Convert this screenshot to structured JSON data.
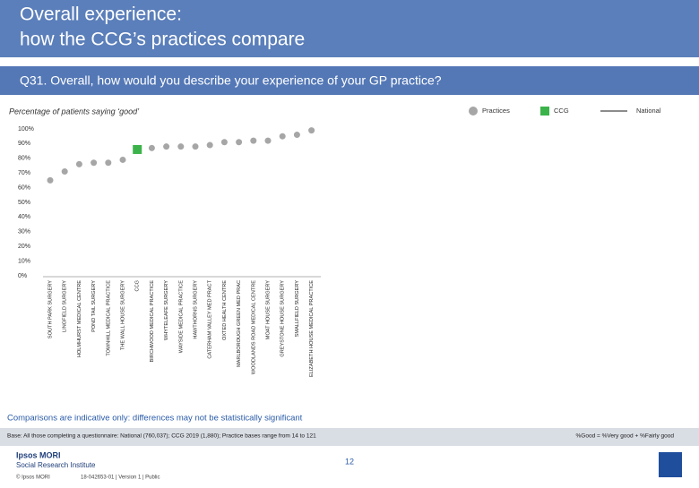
{
  "header": {
    "title": [
      "Overall experience:",
      "how the CCG’s practices compare"
    ]
  },
  "question": "Q31. Overall, how would you describe your experience of your GP practice?",
  "chart_data": {
    "type": "scatter",
    "subtitle": "Percentage of patients saying ‘good’",
    "categories": [
      "SOUTH PARK SURGERY",
      "LINGFIELD SURGERY",
      "HOLMHURST MEDICAL CENTRE",
      "POND TAIL SURGERY",
      "TOWNHILL MEDICAL PRACTICE",
      "THE WALL HOUSE SURGERY",
      "CCG",
      "BIRCHWOOD MEDICAL PRACTICE",
      "WHYTELEAFE SURGERY",
      "WAYSIDE MEDICAL PRACTICE",
      "HAWTHORNS SURGERY",
      "CATERHAM VALLEY MED PRACT",
      "OXTED HEALTH CENTRE",
      "MARLBOROUGH GREEN MED PRAC",
      "WOODLANDS ROAD MEDICAL CENTRE",
      "MOAT HOUSE SURGERY",
      "GREYSTONE HOUSE SURGERY",
      "SMALLFIELD SURGERY",
      "ELIZABETH HOUSE MEDICAL PRACTICE"
    ],
    "values": [
      65,
      71,
      76,
      77,
      77,
      79,
      86,
      87,
      88,
      88,
      88,
      89,
      91,
      91,
      92,
      92,
      95,
      96,
      99
    ],
    "shapes": [
      "circle",
      "circle",
      "circle",
      "circle",
      "circle",
      "circle",
      "square",
      "circle",
      "circle",
      "circle",
      "circle",
      "circle",
      "circle",
      "circle",
      "circle",
      "circle",
      "circle",
      "circle",
      "circle"
    ],
    "colors": [
      "#a6a6a6",
      "#a6a6a6",
      "#a6a6a6",
      "#a6a6a6",
      "#a6a6a6",
      "#a6a6a6",
      "#3cb34a",
      "#a6a6a6",
      "#a6a6a6",
      "#a6a6a6",
      "#a6a6a6",
      "#a6a6a6",
      "#a6a6a6",
      "#a6a6a6",
      "#a6a6a6",
      "#a6a6a6",
      "#a6a6a6",
      "#a6a6a6",
      "#a6a6a6"
    ],
    "legend": [
      {
        "name": "Practices",
        "color": "#a6a6a6",
        "shape": "circle"
      },
      {
        "name": "CCG",
        "color": "#3cb34a",
        "shape": "square"
      },
      {
        "name": "National",
        "color": "#8c8c8c",
        "shape": "line"
      }
    ],
    "ylim": [
      0,
      100
    ],
    "yticks": [
      {
        "value": 0,
        "label": "0%"
      },
      {
        "value": 10,
        "label": "10%"
      },
      {
        "value": 20,
        "label": "20%"
      },
      {
        "value": 30,
        "label": "30%"
      },
      {
        "value": 40,
        "label": "40%"
      },
      {
        "value": 50,
        "label": "50%"
      },
      {
        "value": 60,
        "label": "60%"
      },
      {
        "value": 70,
        "label": "70%"
      },
      {
        "value": 80,
        "label": "80%"
      },
      {
        "value": 90,
        "label": "90%"
      },
      {
        "value": 100,
        "label": "100%"
      }
    ],
    "note": "Comparisons are indicative only: differences may not be statistically significant"
  },
  "footer": {
    "base": "Base: All those completing a questionnaire: National (760,037); CCG 2019 (1,880); Practice bases range from 14 to 121",
    "definition": "%Good = %Very good + %Fairly good",
    "page": "12",
    "logo": [
      "Ipsos MORI",
      "Social Research Institute"
    ],
    "copyright": "© Ipsos MORI",
    "job": "18-042653-01 | Version 1 | Public"
  }
}
